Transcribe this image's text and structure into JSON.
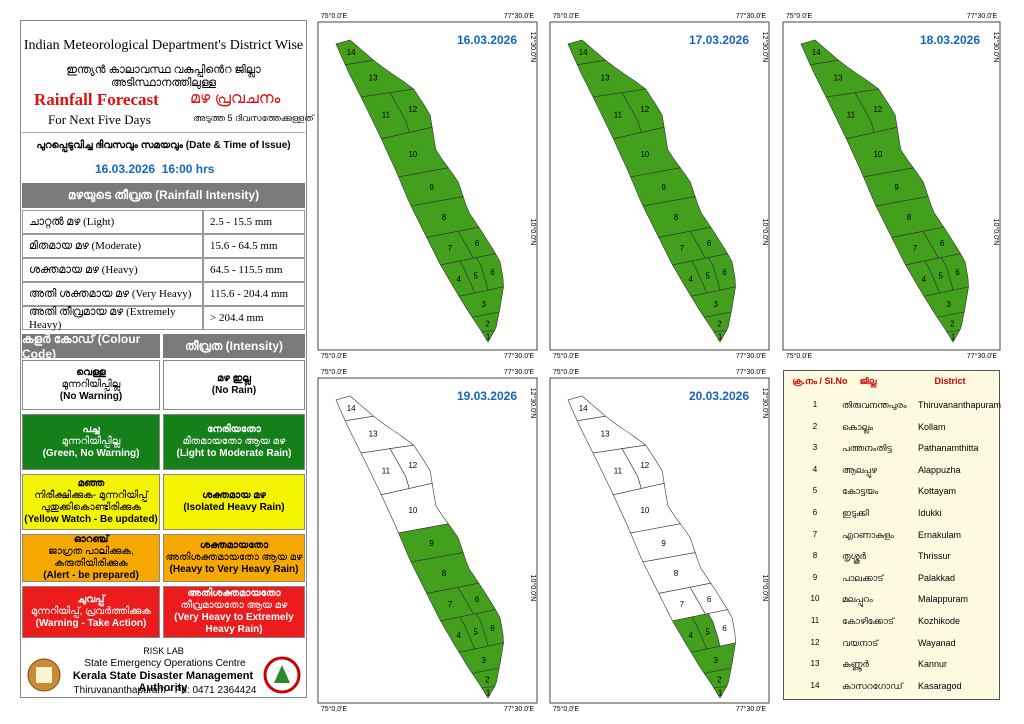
{
  "header": {
    "title": "Indian Meteorological Department's District Wise",
    "title_ml": "ഇന്ത്യൻ കാലാവസ്ഥ വകുപ്പിൻെറ ജില്ലാ അടിസ്ഥാനത്തിലുള്ള",
    "forecast": "Rainfall Forecast",
    "forecast_ml": "മഴ പ്രവചനം",
    "period": "For Next Five Days",
    "period_ml": "അടുത്ത 5 ദിവസത്തേക്കുള്ളത്",
    "issue_label": "പുറപ്പെടുവിച്ച ദിവസവും സമയവും (Date & Time of Issue)",
    "issue": "16.03.2026  16:00 hrs"
  },
  "intensity": {
    "title": "മഴയുടെ തീവ്രത (Rainfall Intensity)",
    "rows": [
      [
        "ചാറ്റൽ മഴ (Light)",
        "2.5 - 15.5 mm"
      ],
      [
        "മിതമായ മഴ (Moderate)",
        "15.6 - 64.5 mm"
      ],
      [
        "ശക്തമായ മഴ (Heavy)",
        "64.5 - 115.5 mm"
      ],
      [
        "അതി ശക്തമായ മഴ (Very Heavy)",
        "115.6 - 204.4 mm"
      ],
      [
        "അതി തീവ്രമായ മഴ (Extremely Heavy)",
        "> 204.4 mm"
      ]
    ]
  },
  "colour_code": {
    "headers": [
      "കളർ കോഡ് (Colour Code)",
      "തീവ്രത (Intensity)"
    ],
    "rows": [
      {
        "color": "#ffffff",
        "text": "#000000",
        "code": [
          "വെള്ള",
          "മുന്നറിയിപ്പില്ല",
          "(No Warning)"
        ],
        "intensity": [
          "മഴ ഇല്ല",
          "(No Rain)"
        ]
      },
      {
        "color": "#15801a",
        "text": "#ffffff",
        "code": [
          "പച്ച",
          "മുന്നറിയിപ്പില്ല",
          "(Green, No Warning)"
        ],
        "intensity": [
          "നേരിയതോ",
          "മിതമായതോ ആയ മഴ",
          "(Light to Moderate Rain)"
        ]
      },
      {
        "color": "#f4f400",
        "text": "#000000",
        "code": [
          "മഞ്ഞ",
          "നിരീക്ഷിക്കുക- മുന്നറിയിപ്പ്",
          "പുതുക്കികൊണ്ടിരിക്കുക",
          "(Yellow Watch - Be updated)"
        ],
        "intensity": [
          "ശക്തമായ മഴ",
          "(Isolated Heavy Rain)"
        ]
      },
      {
        "color": "#f6a800",
        "text": "#000000",
        "code": [
          "ഓറഞ്ച്",
          "ജാഗ്രത പാലിക്കുക, കരുതിയിരിക്കുക",
          "(Alert - be prepared)"
        ],
        "intensity": [
          "ശക്തമായതോ",
          "അതിശക്തമായതോ ആയ മഴ",
          "(Heavy to Very Heavy Rain)"
        ]
      },
      {
        "color": "#ec1c1c",
        "text": "#ffffff",
        "code": [
          "ചുവപ്പ്",
          "മുന്നറിയിപ്പ്, പ്രവർത്തിക്കുക",
          "(Warning - Take Action)"
        ],
        "intensity": [
          "അതിശക്തമായതോ",
          "തീവ്രമായതോ ആയ മഴ",
          "(Very Heavy to Extremely Heavy Rain)"
        ]
      }
    ]
  },
  "footer": {
    "lab": "RISK LAB",
    "centre": "State Emergency Operations Centre",
    "authority": "Kerala State Disaster Management Authority",
    "address": "Thiruvananthapuram - Ph: 0471 2364424"
  },
  "map_labels": {
    "lon": [
      "75°0.0'E",
      "77°30.0'E"
    ],
    "lat": [
      "10°0.0'N",
      "12°30.0'N"
    ],
    "districts": [
      "1",
      "2",
      "3",
      "4",
      "5",
      "6",
      "7",
      "8",
      "9",
      "10",
      "11",
      "12",
      "13",
      "14"
    ]
  },
  "maps": [
    {
      "date": "16.03.2026",
      "district_colors": [
        "#43a01c",
        "#43a01c",
        "#43a01c",
        "#43a01c",
        "#43a01c",
        "#43a01c",
        "#43a01c",
        "#43a01c",
        "#43a01c",
        "#43a01c",
        "#43a01c",
        "#43a01c",
        "#43a01c",
        "#43a01c"
      ]
    },
    {
      "date": "17.03.2026",
      "district_colors": [
        "#43a01c",
        "#43a01c",
        "#43a01c",
        "#43a01c",
        "#43a01c",
        "#43a01c",
        "#43a01c",
        "#43a01c",
        "#43a01c",
        "#43a01c",
        "#43a01c",
        "#43a01c",
        "#43a01c",
        "#43a01c"
      ]
    },
    {
      "date": "18.03.2026",
      "district_colors": [
        "#43a01c",
        "#43a01c",
        "#43a01c",
        "#43a01c",
        "#43a01c",
        "#43a01c",
        "#43a01c",
        "#43a01c",
        "#43a01c",
        "#43a01c",
        "#43a01c",
        "#43a01c",
        "#43a01c",
        "#43a01c"
      ]
    },
    {
      "date": "19.03.2026",
      "district_colors": [
        "#43a01c",
        "#43a01c",
        "#43a01c",
        "#43a01c",
        "#43a01c",
        "#43a01c",
        "#43a01c",
        "#43a01c",
        "#43a01c",
        "#ffffff",
        "#ffffff",
        "#ffffff",
        "#ffffff",
        "#ffffff"
      ]
    },
    {
      "date": "20.03.2026",
      "district_colors": [
        "#43a01c",
        "#43a01c",
        "#43a01c",
        "#43a01c",
        "#43a01c",
        "#ffffff",
        "#ffffff",
        "#ffffff",
        "#ffffff",
        "#ffffff",
        "#ffffff",
        "#ffffff",
        "#ffffff",
        "#ffffff"
      ]
    }
  ],
  "district_table": {
    "headers": [
      "ക്ര.നം / Sl.No",
      "ജില്ല",
      "District"
    ],
    "rows": [
      [
        "1",
        "തിരുവനന്തപുരം",
        "Thiruvananthapuram"
      ],
      [
        "2",
        "കൊല്ലം",
        "Kollam"
      ],
      [
        "3",
        "പത്തനംതിട്ട",
        "Pathanamthitta"
      ],
      [
        "4",
        "ആലപ്പുഴ",
        "Alappuzha"
      ],
      [
        "5",
        "കോട്ടയം",
        "Kottayam"
      ],
      [
        "6",
        "ഇടുക്കി",
        "Idukki"
      ],
      [
        "7",
        "എറണാകുളം",
        "Ernakulam"
      ],
      [
        "8",
        "തൃശ്ശൂർ",
        "Thrissur"
      ],
      [
        "9",
        "പാലക്കാട്",
        "Palakkad"
      ],
      [
        "10",
        "മലപ്പുറം",
        "Malappuram"
      ],
      [
        "11",
        "കോഴിക്കോട്",
        "Kozhikode"
      ],
      [
        "12",
        "വയനാട്",
        "Wayanad"
      ],
      [
        "13",
        "കണ്ണൂർ",
        "Kannur"
      ],
      [
        "14",
        "കാസറഗോഡ്",
        "Kasaragod"
      ]
    ]
  }
}
